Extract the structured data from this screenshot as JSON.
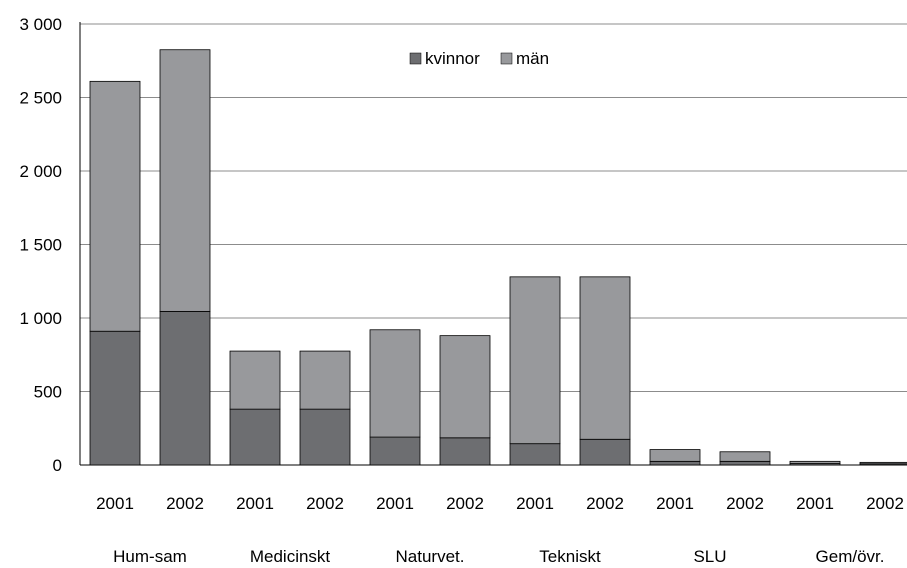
{
  "chart_data": {
    "type": "bar",
    "stacked": true,
    "categories": [
      "2001",
      "2002",
      "2001",
      "2002",
      "2001",
      "2002",
      "2001",
      "2002",
      "2001",
      "2002",
      "2001",
      "2002"
    ],
    "groups": [
      "Hum-sam",
      "Medicinskt",
      "Naturvet.",
      "Tekniskt",
      "SLU",
      "Gem/övr."
    ],
    "series": [
      {
        "name": "kvinnor",
        "color": "#6d6e71",
        "values": [
          910,
          1045,
          380,
          380,
          190,
          185,
          145,
          175,
          25,
          25,
          10,
          8
        ]
      },
      {
        "name": "män",
        "color": "#98999c",
        "values": [
          1700,
          1780,
          395,
          395,
          730,
          695,
          1135,
          1105,
          80,
          65,
          15,
          10
        ]
      }
    ],
    "ylim": [
      0,
      3000
    ],
    "yticks": [
      0,
      500,
      1000,
      1500,
      2000,
      2500,
      3000
    ],
    "ytick_labels": [
      "0",
      "500",
      "1 000",
      "1 500",
      "2 000",
      "2 500",
      "3 000"
    ],
    "grid": true,
    "legend_position": "top-center"
  }
}
